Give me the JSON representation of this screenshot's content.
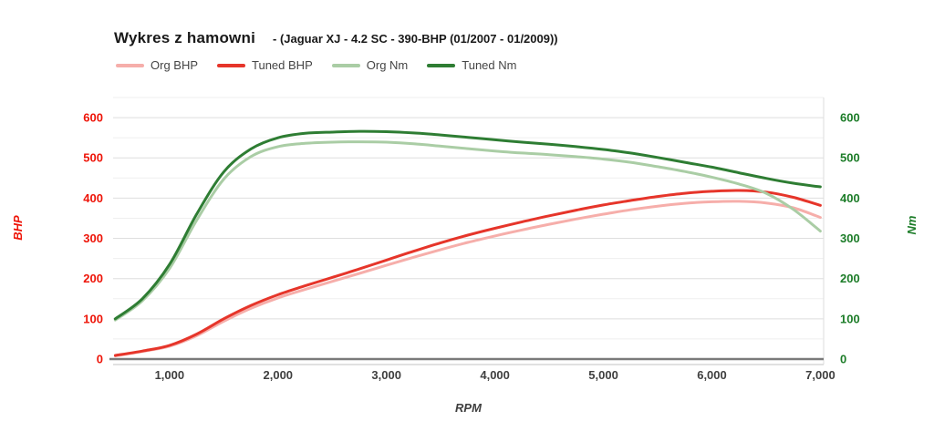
{
  "chart_data": {
    "type": "line",
    "title": "Wykres z hamowni",
    "subtitle": "- (Jaguar XJ - 4.2 SC - 390-BHP (01/2007 - 01/2009))",
    "xlabel": "RPM",
    "legend_position": "top",
    "x": [
      500,
      750,
      1000,
      1250,
      1500,
      1750,
      2000,
      2250,
      2500,
      2750,
      3000,
      3250,
      3500,
      3750,
      4000,
      4250,
      4500,
      4750,
      5000,
      5250,
      5500,
      5750,
      6000,
      6250,
      6500,
      6750,
      7000
    ],
    "series": [
      {
        "name": "Org BHP",
        "axis": "left",
        "color": "#f6aeaa",
        "values": [
          8,
          19,
          32,
          58,
          94,
          126,
          152,
          173,
          193,
          213,
          233,
          253,
          272,
          290,
          306,
          321,
          335,
          348,
          360,
          371,
          380,
          387,
          391,
          392,
          388,
          376,
          352
        ]
      },
      {
        "name": "Tuned BHP",
        "axis": "left",
        "color": "#e6352a",
        "values": [
          9,
          20,
          34,
          62,
          100,
          133,
          160,
          182,
          203,
          224,
          246,
          268,
          289,
          308,
          325,
          341,
          356,
          370,
          383,
          394,
          404,
          412,
          417,
          419,
          415,
          402,
          382
        ]
      },
      {
        "name": "Org Nm",
        "axis": "right",
        "color": "#aacda5",
        "values": [
          97,
          145,
          225,
          345,
          447,
          503,
          528,
          536,
          539,
          540,
          539,
          535,
          529,
          523,
          517,
          512,
          508,
          503,
          497,
          489,
          478,
          466,
          452,
          435,
          412,
          372,
          318
        ]
      },
      {
        "name": "Tuned Nm",
        "axis": "right",
        "color": "#2e7d33",
        "values": [
          100,
          150,
          235,
          360,
          465,
          522,
          550,
          561,
          564,
          566,
          565,
          562,
          557,
          551,
          545,
          539,
          534,
          528,
          521,
          512,
          501,
          489,
          477,
          463,
          449,
          437,
          428
        ]
      }
    ],
    "left_axis": {
      "title": "BHP",
      "color": "#ee1408",
      "ticks": [
        0,
        100,
        200,
        300,
        400,
        500,
        600
      ],
      "range": [
        0,
        650
      ]
    },
    "right_axis": {
      "title": "Nm",
      "color": "#1c7c28",
      "ticks": [
        0,
        100,
        200,
        300,
        400,
        500,
        600
      ],
      "range": [
        0,
        650
      ]
    },
    "x_ticks": [
      1000,
      2000,
      3000,
      4000,
      5000,
      6000,
      7000
    ],
    "x_tick_labels": [
      "1,000",
      "2,000",
      "3,000",
      "4,000",
      "5,000",
      "6,000",
      "7,000"
    ],
    "x_tick_color": "#3f3f3f",
    "xlim": [
      480,
      7030
    ],
    "grid": {
      "orientation": "horizontal",
      "minor_step": 50,
      "major_step": 100,
      "minor_color": "#efefef",
      "major_color": "#dedede",
      "baseline_color": "#7a7a7a"
    }
  }
}
